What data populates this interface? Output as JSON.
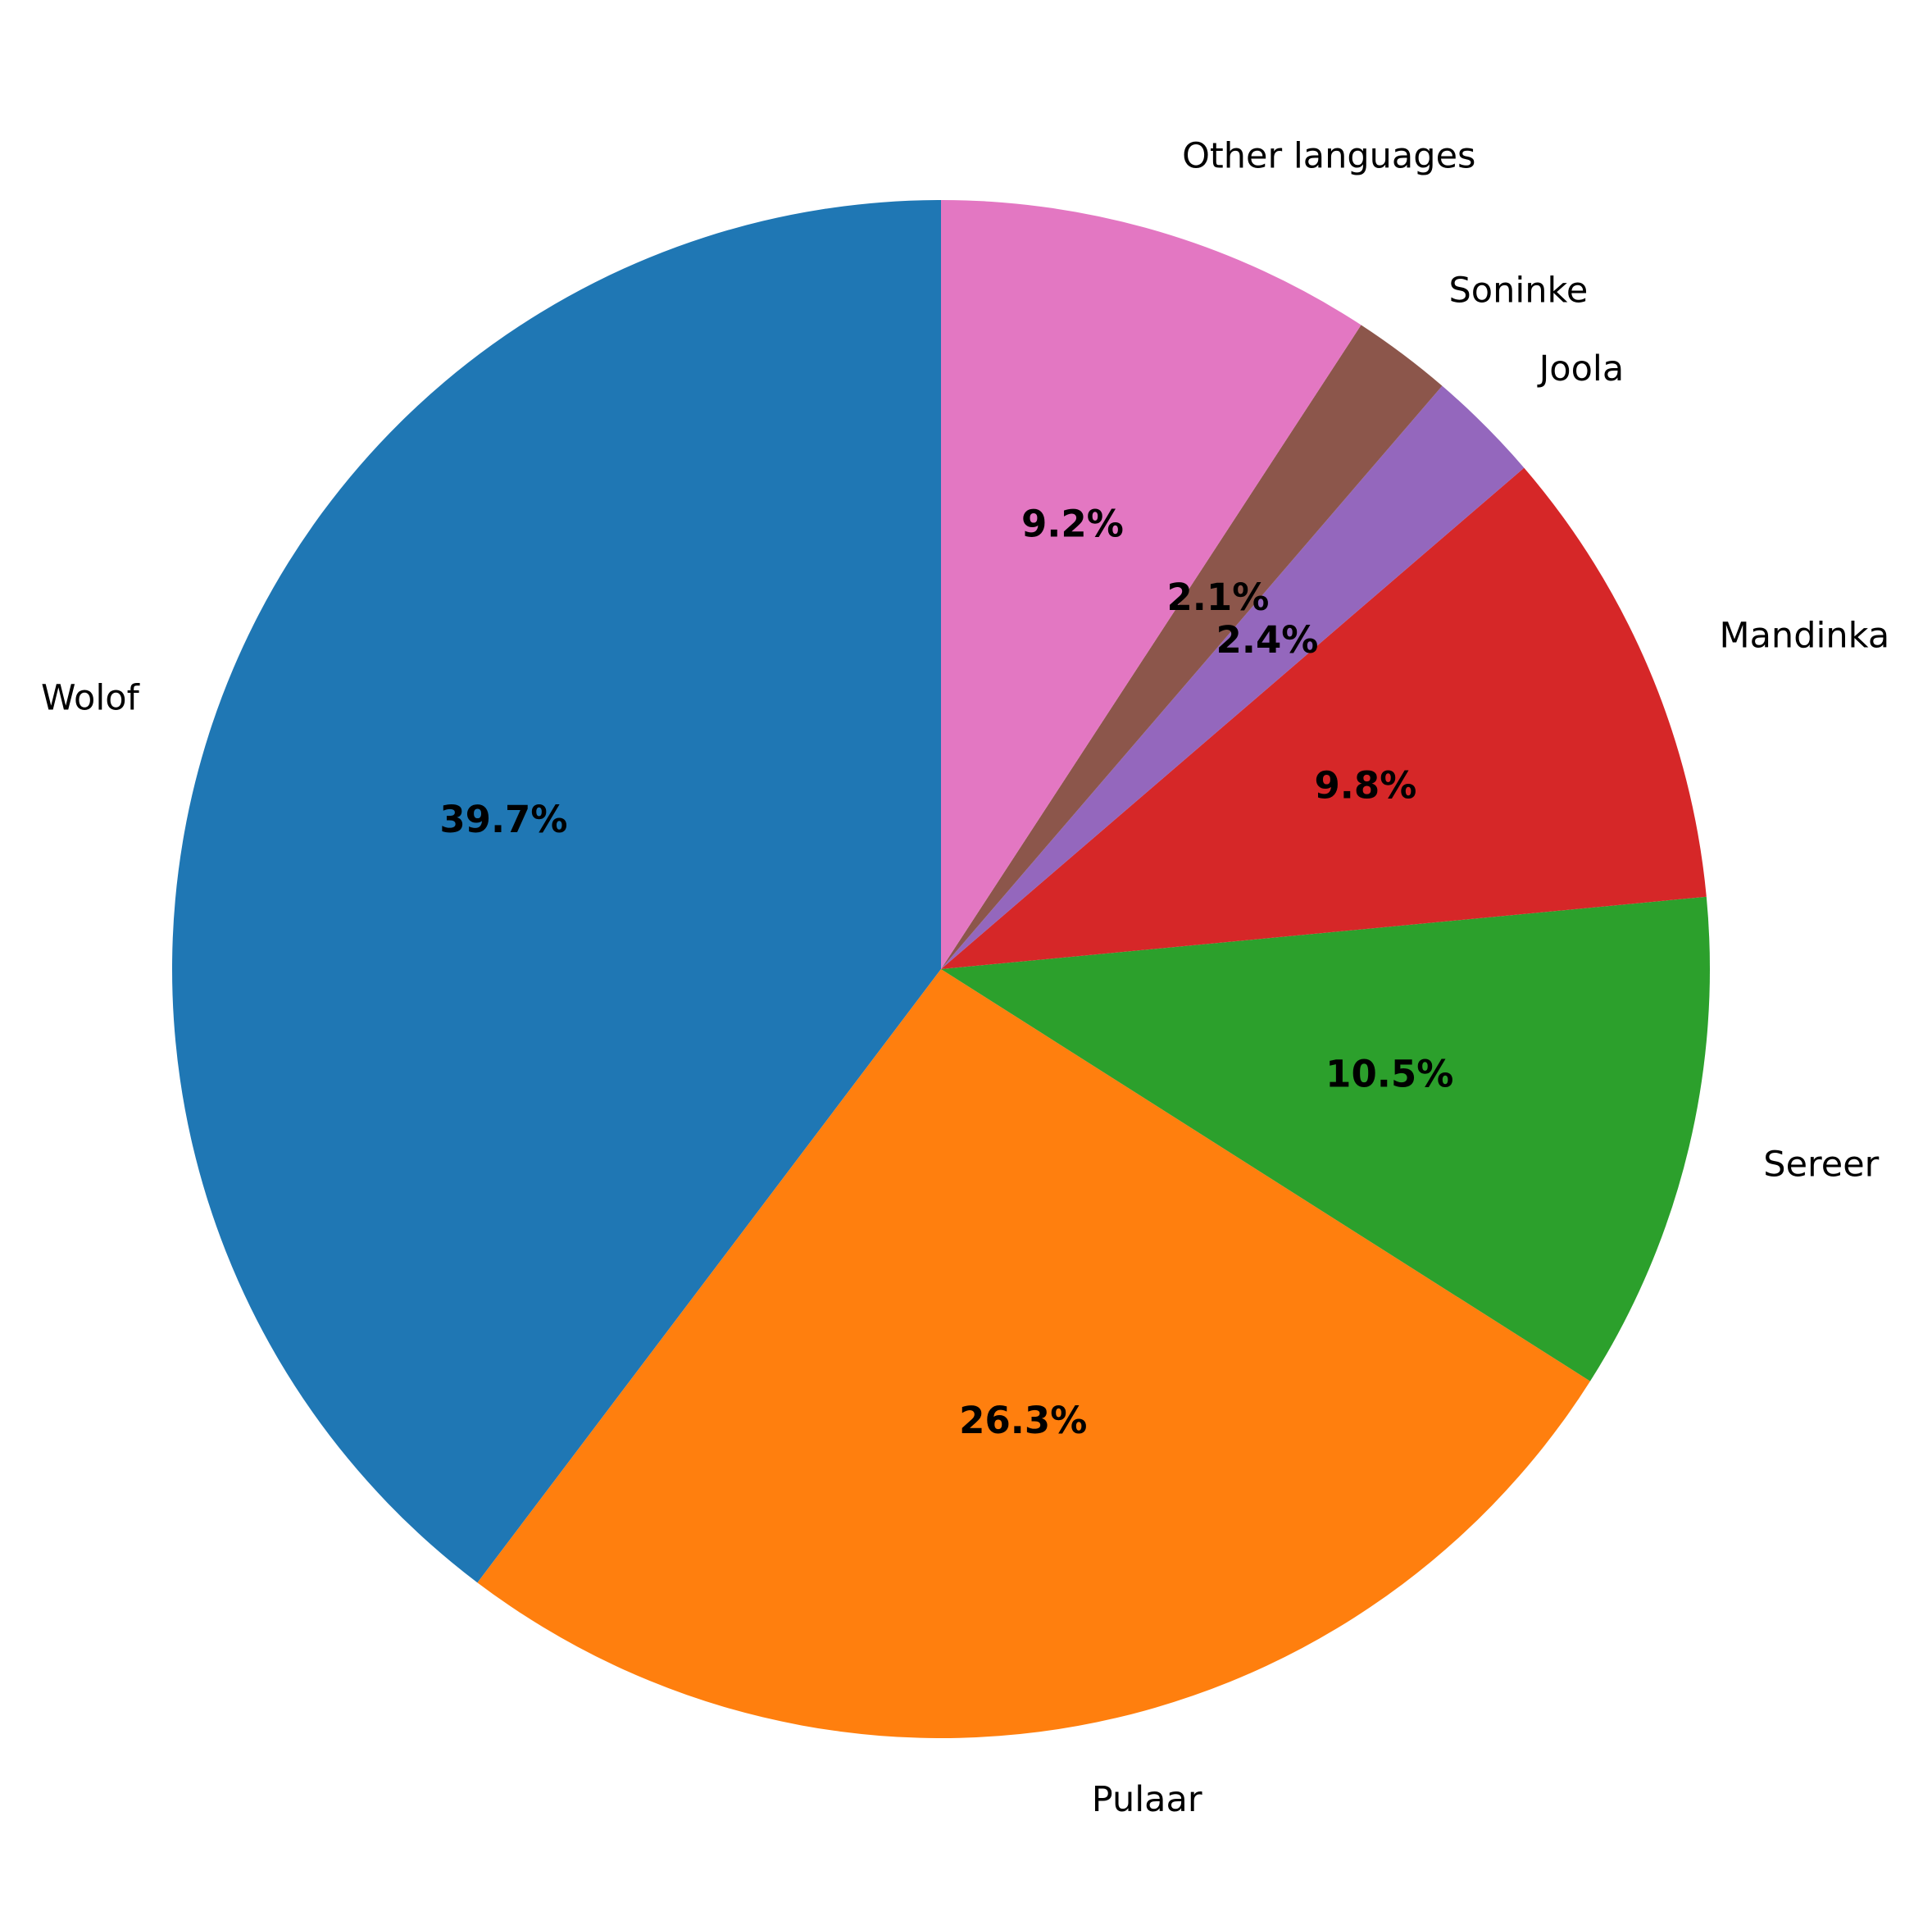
{
  "chart_data": {
    "type": "pie",
    "categories": [
      "Wolof",
      "Pulaar",
      "Sereer",
      "Mandinka",
      "Joola",
      "Soninke",
      "Other languages"
    ],
    "values": [
      39.7,
      26.3,
      10.5,
      9.8,
      2.4,
      2.1,
      9.2
    ],
    "value_labels": [
      "39.7%",
      "26.3%",
      "10.5%",
      "9.8%",
      "2.4%",
      "2.1%",
      "9.2%"
    ],
    "colors": [
      "#1f77b4",
      "#ff7f0e",
      "#2ca02c",
      "#d62728",
      "#9467bd",
      "#8c564b",
      "#e377c2"
    ]
  }
}
